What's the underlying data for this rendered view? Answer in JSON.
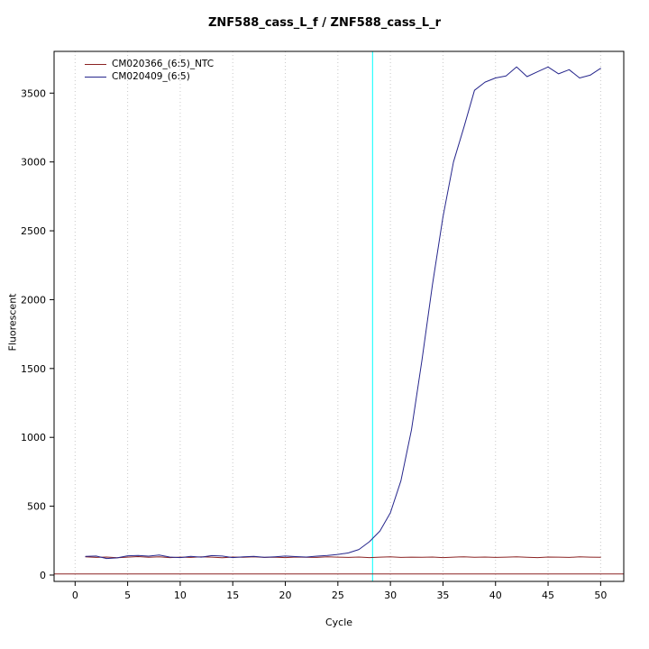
{
  "chart_data": {
    "type": "line",
    "title": "ZNF588_cass_L_f / ZNF588_cass_L_r",
    "xlabel": "Cycle",
    "ylabel": "Fluorescent",
    "xlim": [
      -2,
      52.2
    ],
    "ylim": [
      -46,
      3803
    ],
    "xticks": [
      0,
      5,
      10,
      15,
      20,
      25,
      30,
      35,
      40,
      45,
      50
    ],
    "yticks": [
      0,
      500,
      1000,
      1500,
      2000,
      2500,
      3000,
      3500
    ],
    "grid": {
      "vertical": true,
      "horizontal": false,
      "color": "#c8c8c8",
      "style": "dotted"
    },
    "threshold_vline": {
      "x": 28.3,
      "color": "#00ffff"
    },
    "baseline_hline": {
      "y": 8,
      "color": "#8b2323"
    },
    "legend": {
      "position": "top-left",
      "entries": [
        {
          "label": "CM020366_(6:5)_NTC",
          "color": "#8b2323"
        },
        {
          "label": "CM020409_(6:5)",
          "color": "#26268c"
        }
      ]
    },
    "x": [
      1,
      2,
      3,
      4,
      5,
      6,
      7,
      8,
      9,
      10,
      11,
      12,
      13,
      14,
      15,
      16,
      17,
      18,
      19,
      20,
      21,
      22,
      23,
      24,
      25,
      26,
      27,
      28,
      29,
      30,
      31,
      32,
      33,
      34,
      35,
      36,
      37,
      38,
      39,
      40,
      41,
      42,
      43,
      44,
      45,
      46,
      47,
      48,
      49,
      50
    ],
    "series": [
      {
        "name": "CM020366_(6:5)_NTC",
        "color": "#8b2323",
        "values": [
          132,
          128,
          131,
          126,
          130,
          134,
          129,
          132,
          127,
          130,
          128,
          133,
          130,
          126,
          131,
          129,
          132,
          128,
          130,
          127,
          131,
          129,
          128,
          132,
          130,
          128,
          131,
          127,
          130,
          132,
          128,
          130,
          129,
          131,
          127,
          130,
          133,
          129,
          131,
          128,
          130,
          132,
          129,
          127,
          131,
          130,
          128,
          132,
          130,
          129
        ]
      },
      {
        "name": "CM020409_(6:5)",
        "color": "#26268c",
        "values": [
          135,
          138,
          120,
          125,
          140,
          142,
          137,
          145,
          131,
          127,
          135,
          130,
          141,
          138,
          127,
          132,
          135,
          129,
          133,
          138,
          134,
          131,
          137,
          142,
          150,
          161,
          186,
          242,
          320,
          452,
          685,
          1055,
          1560,
          2110,
          2600,
          3000,
          3255,
          3520,
          3580,
          3610,
          3625,
          3690,
          3620,
          3655,
          3690,
          3640,
          3670,
          3610,
          3630,
          3680
        ]
      }
    ]
  }
}
